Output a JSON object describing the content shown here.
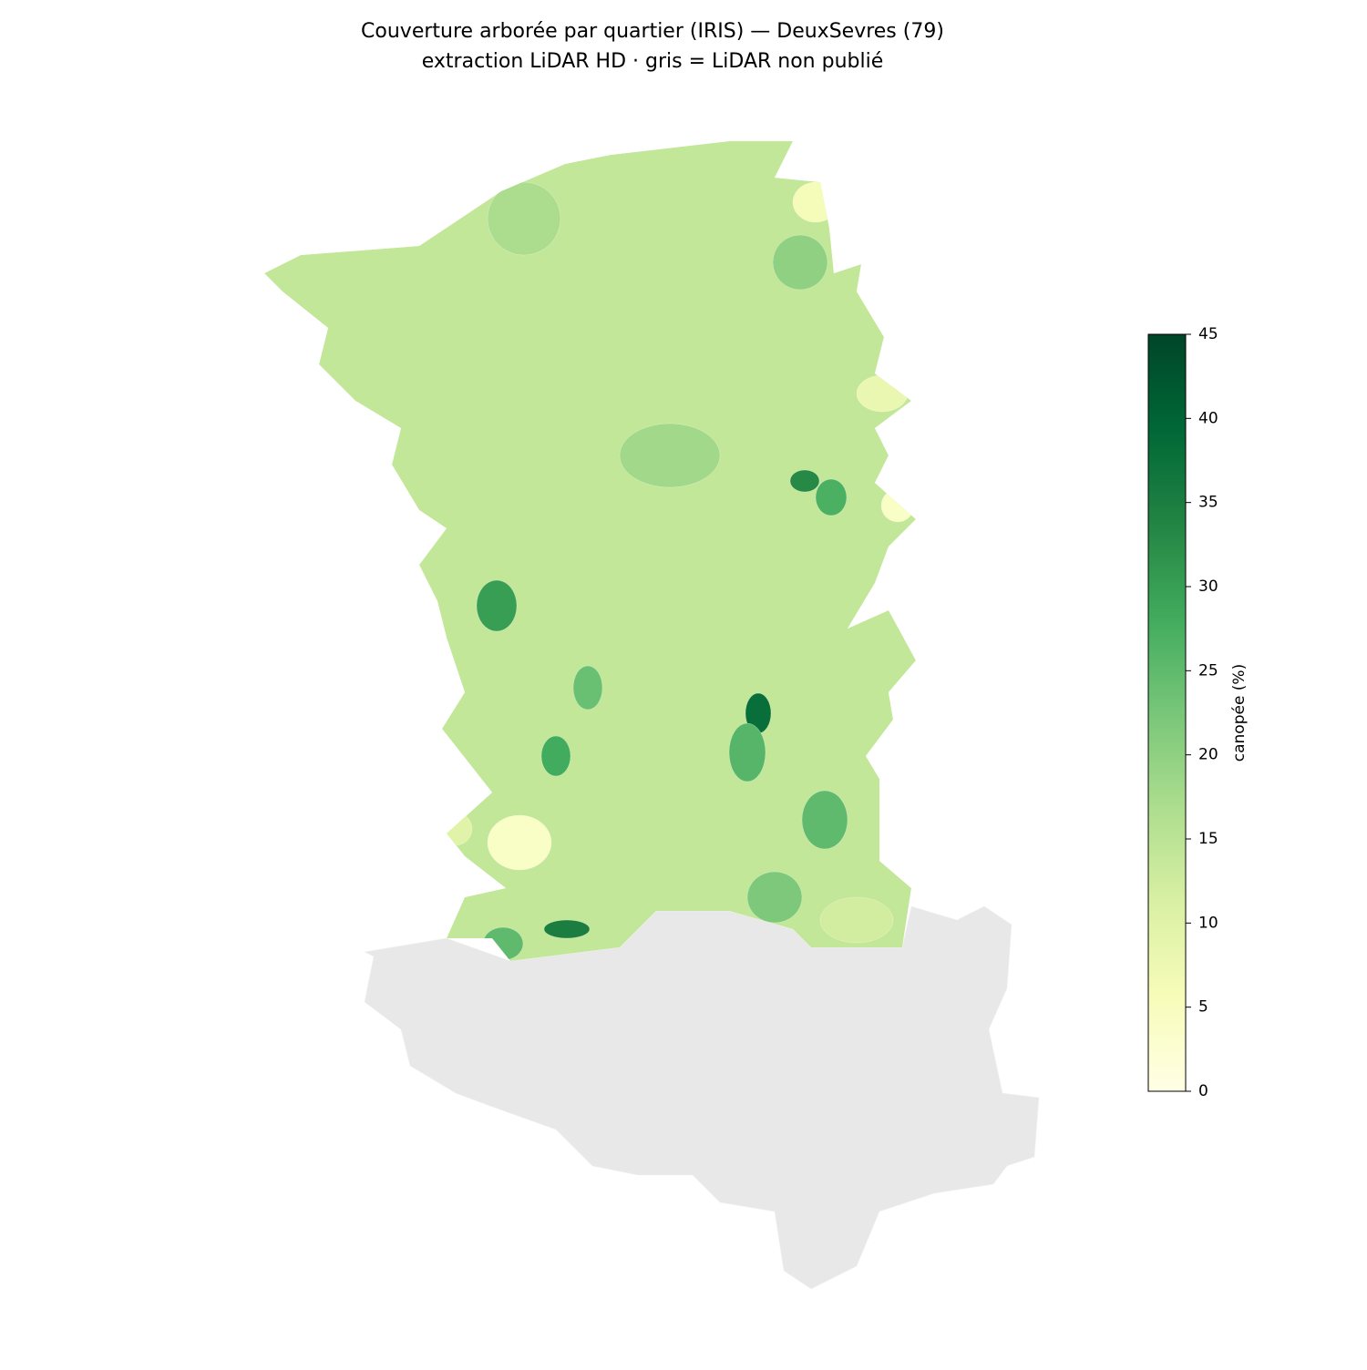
{
  "chart_data": {
    "type": "choropleth",
    "title": "Couverture arborée par quartier (IRIS) — DeuxSevres (79)",
    "subtitle": "extraction LiDAR HD · gris = LiDAR non publié",
    "colorbar_label": "canopée (%)",
    "clim": [
      0,
      45
    ],
    "cticks": [
      0,
      5,
      10,
      15,
      20,
      25,
      30,
      35,
      40,
      45
    ],
    "colormap": [
      "#ffffe5",
      "#f7fcb9",
      "#d9f0a3",
      "#addd8e",
      "#78c679",
      "#41ab5d",
      "#238443",
      "#006837",
      "#004529"
    ],
    "nodata_color": "#e8e8e8",
    "values": [
      14,
      30,
      38,
      26,
      25,
      33,
      27,
      24,
      28,
      22,
      25,
      20,
      17,
      6,
      4,
      4,
      8,
      18,
      35,
      10,
      12
    ]
  }
}
